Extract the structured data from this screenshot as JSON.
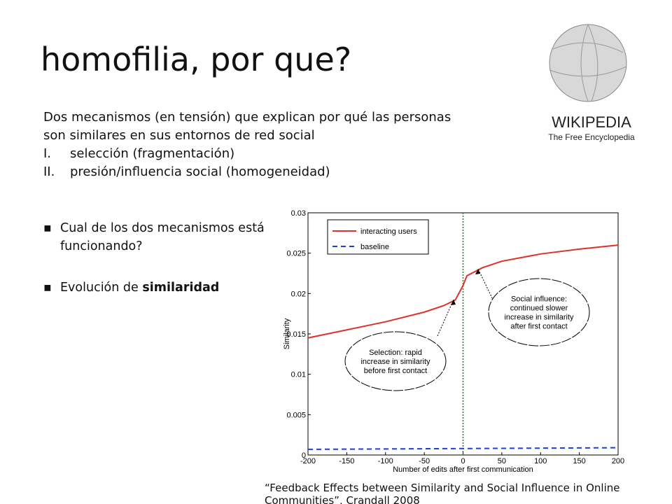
{
  "title": "homofilia, por que?",
  "intro": {
    "lines": [
      "Dos mecanismos (en tensión) que explican por qué las personas",
      "son similares en sus entornos de red social"
    ],
    "items": [
      {
        "num": "I.",
        "text": "selección (fragmentación)"
      },
      {
        "num": "II.",
        "text": "presión/influencia social (homogeneidad)"
      }
    ]
  },
  "bullets": [
    {
      "text": "Cual de los dos mecanismos está funcionando?"
    },
    {
      "text": "Evolución de ",
      "bold": "similaridad"
    }
  ],
  "logo": {
    "name": "WIKIPEDIA",
    "tagline": "The Free Encyclopedia"
  },
  "citation": "“Feedback Effects between Similarity and Social Influence in Online Communities”, Crandall 2008",
  "chart_data": {
    "type": "line",
    "x_label": "Number of edits after first communication",
    "y_label": "Similarity",
    "xlim": [
      -200,
      200
    ],
    "xticks": [
      -200,
      -150,
      -100,
      -50,
      0,
      50,
      100,
      150,
      200
    ],
    "ylim": [
      0,
      0.03
    ],
    "yticks": [
      0,
      0.005,
      0.01,
      0.015,
      0.02,
      0.025,
      0.03
    ],
    "vline": 0,
    "series": [
      {
        "name": "interacting users",
        "color": "#e0302a",
        "style": "solid",
        "x": [
          -200,
          -150,
          -100,
          -50,
          -25,
          -10,
          0,
          5,
          25,
          50,
          100,
          150,
          200
        ],
        "values": [
          0.0145,
          0.0155,
          0.0165,
          0.0177,
          0.0185,
          0.0192,
          0.021,
          0.0222,
          0.0232,
          0.024,
          0.0249,
          0.0255,
          0.026
        ]
      },
      {
        "name": "baseline",
        "color": "#1f3fd6",
        "style": "dashed",
        "x": [
          -200,
          0,
          200
        ],
        "values": [
          0.0007,
          0.0008,
          0.0009
        ]
      }
    ],
    "annotations": [
      {
        "lines": [
          "Selection: rapid",
          "increase in similarity",
          "before first contact"
        ]
      },
      {
        "lines": [
          "Social influence:",
          "continued slower",
          "increase in similarity",
          "after first contact"
        ]
      }
    ]
  }
}
